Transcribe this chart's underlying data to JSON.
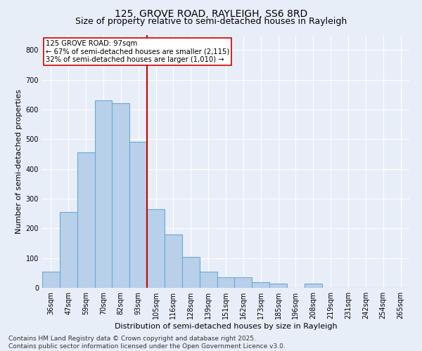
{
  "title": "125, GROVE ROAD, RAYLEIGH, SS6 8RD",
  "subtitle": "Size of property relative to semi-detached houses in Rayleigh",
  "xlabel": "Distribution of semi-detached houses by size in Rayleigh",
  "ylabel": "Number of semi-detached properties",
  "categories": [
    "36sqm",
    "47sqm",
    "59sqm",
    "70sqm",
    "82sqm",
    "93sqm",
    "105sqm",
    "116sqm",
    "128sqm",
    "139sqm",
    "151sqm",
    "162sqm",
    "173sqm",
    "185sqm",
    "196sqm",
    "208sqm",
    "219sqm",
    "231sqm",
    "242sqm",
    "254sqm",
    "265sqm"
  ],
  "values": [
    55,
    255,
    455,
    630,
    620,
    490,
    265,
    180,
    105,
    55,
    35,
    35,
    20,
    15,
    0,
    15,
    0,
    0,
    0,
    0,
    0
  ],
  "bar_color": "#b8d0ea",
  "bar_edge_color": "#6aaad4",
  "vline_color": "#cc0000",
  "annotation_box_color": "#ffffff",
  "annotation_box_edge": "#cc0000",
  "marker_index": 5,
  "marker_label": "125 GROVE ROAD: 97sqm",
  "smaller_pct": "67% of semi-detached houses are smaller (2,115)",
  "larger_pct": "32% of semi-detached houses are larger (1,010)",
  "ylim": [
    0,
    850
  ],
  "yticks": [
    0,
    100,
    200,
    300,
    400,
    500,
    600,
    700,
    800
  ],
  "title_fontsize": 10,
  "subtitle_fontsize": 9,
  "axis_fontsize": 8,
  "tick_fontsize": 7,
  "footer_text": "Contains HM Land Registry data © Crown copyright and database right 2025.\nContains public sector information licensed under the Open Government Licence v3.0.",
  "footer_fontsize": 6.5,
  "background_color": "#e8eef8",
  "plot_background_color": "#e8eef8",
  "grid_color": "#ffffff"
}
